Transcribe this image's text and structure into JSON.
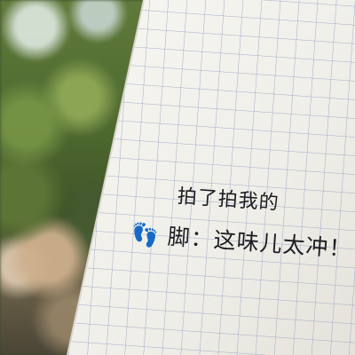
{
  "photo": {
    "subject": "grid-paper-note",
    "handwriting": {
      "line1": "拍了拍我的",
      "line2": "👣 脚：这味儿太冲！"
    }
  },
  "colors": {
    "paper": "#f4f3ee",
    "grid": "#9aa4c8",
    "ink": "#1c1c22",
    "foliage": "#5f7a3a"
  }
}
